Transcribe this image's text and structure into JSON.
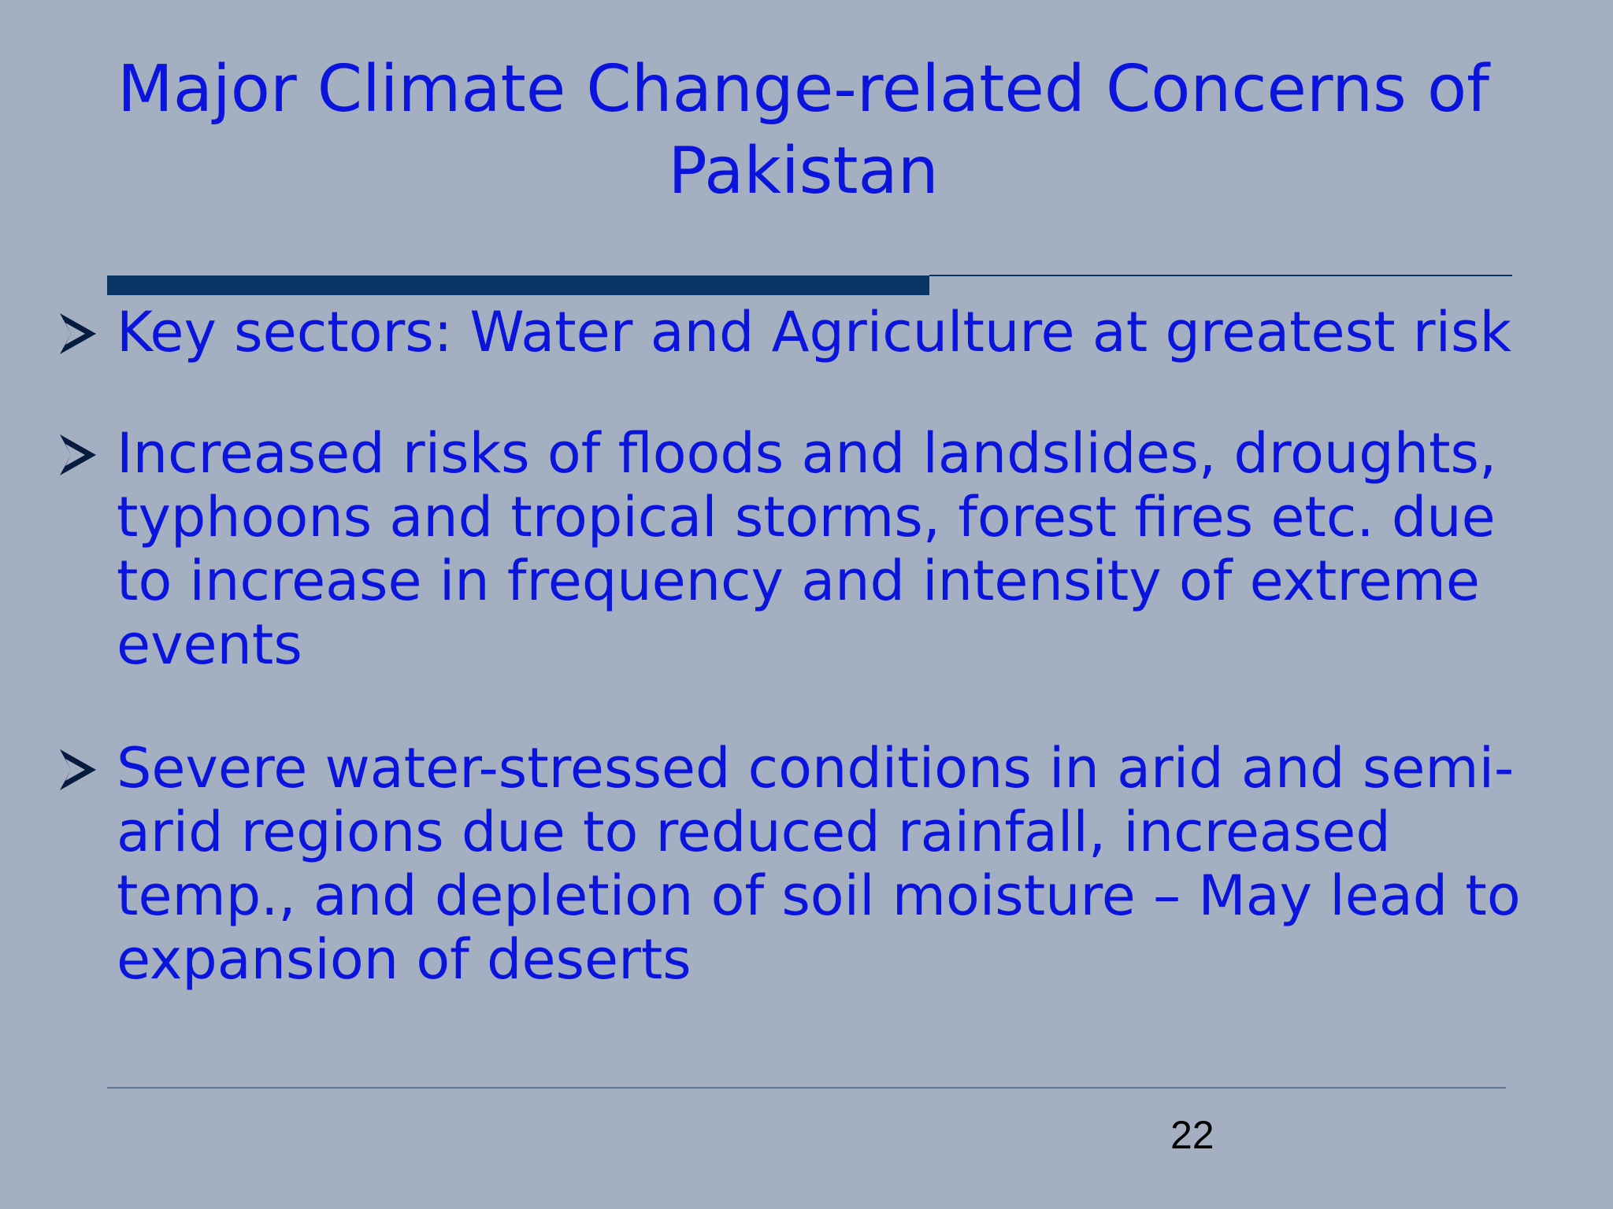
{
  "slide": {
    "title": "Major Climate Change-related Concerns of Pakistan",
    "bullets": [
      {
        "text": "Key sectors: Water and Agriculture at greatest risk"
      },
      {
        "text": "Increased risks of floods and landslides, droughts, typhoons and tropical storms, forest fires etc. due to increase in frequency and intensity of extreme events"
      },
      {
        "text": "Severe water-stressed conditions in arid and semi-arid regions due to reduced rainfall, increased temp., and depletion of soil moisture  –  May lead to expansion of deserts"
      }
    ],
    "bullet_icon": "arrowhead-bullet-icon",
    "page_number": "22"
  },
  "colors": {
    "background": "#a4b0c2",
    "text": "#0a14dc",
    "rule": "#0b3466",
    "page_number": "#000000"
  }
}
